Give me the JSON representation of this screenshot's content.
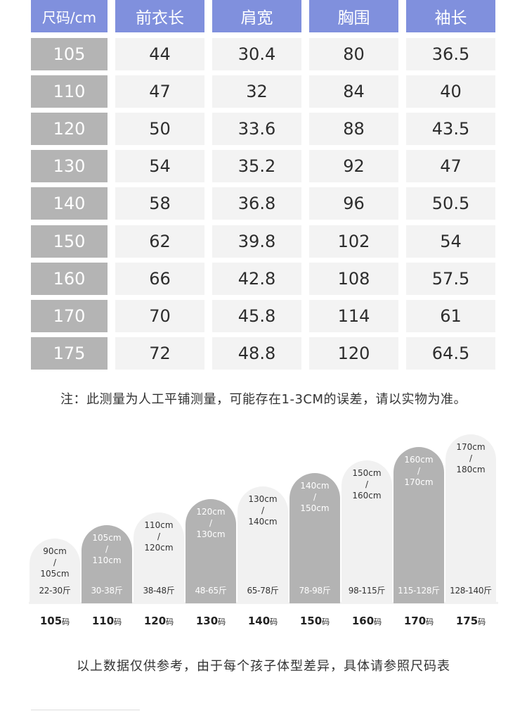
{
  "colors": {
    "header_bg": "#8090dd",
    "size_col_bg": "#b4b4b4",
    "cell_bg": "#f3f3f3",
    "bar_light": "#f1f1f1",
    "bar_dark": "#b3b3b3"
  },
  "size_table": {
    "headers": [
      "尺码/cm",
      "前衣长",
      "肩宽",
      "胸围",
      "袖长"
    ],
    "rows": [
      [
        "105",
        "44",
        "30.4",
        "80",
        "36.5"
      ],
      [
        "110",
        "47",
        "32",
        "84",
        "40"
      ],
      [
        "120",
        "50",
        "33.6",
        "88",
        "43.5"
      ],
      [
        "130",
        "54",
        "35.2",
        "92",
        "47"
      ],
      [
        "140",
        "58",
        "36.8",
        "96",
        "50.5"
      ],
      [
        "150",
        "62",
        "39.8",
        "102",
        "54"
      ],
      [
        "160",
        "66",
        "42.8",
        "108",
        "57.5"
      ],
      [
        "170",
        "70",
        "45.8",
        "114",
        "61"
      ],
      [
        "175",
        "72",
        "48.8",
        "120",
        "64.5"
      ]
    ]
  },
  "measure_note": "注：此测量为人工平铺测量，可能存在1-3CM的误差，请以实物为准。",
  "chart_data": {
    "type": "bar",
    "categories": [
      "105码",
      "110码",
      "120码",
      "130码",
      "140码",
      "150码",
      "160码",
      "170码",
      "175码"
    ],
    "bars": [
      {
        "size": "105",
        "unit": "码",
        "height_from": "90cm",
        "slash": "/",
        "height_to": "105cm",
        "weight": "22-30斤",
        "shade": "light"
      },
      {
        "size": "110",
        "unit": "码",
        "height_from": "105cm",
        "slash": "/",
        "height_to": "110cm",
        "weight": "30-38斤",
        "shade": "dark"
      },
      {
        "size": "120",
        "unit": "码",
        "height_from": "110cm",
        "slash": "/",
        "height_to": "120cm",
        "weight": "38-48斤",
        "shade": "light"
      },
      {
        "size": "130",
        "unit": "码",
        "height_from": "120cm",
        "slash": "/",
        "height_to": "130cm",
        "weight": "48-65斤",
        "shade": "dark"
      },
      {
        "size": "140",
        "unit": "码",
        "height_from": "130cm",
        "slash": "/",
        "height_to": "140cm",
        "weight": "65-78斤",
        "shade": "light"
      },
      {
        "size": "150",
        "unit": "码",
        "height_from": "140cm",
        "slash": "/",
        "height_to": "150cm",
        "weight": "78-98斤",
        "shade": "dark"
      },
      {
        "size": "160",
        "unit": "码",
        "height_from": "150cm",
        "slash": "/",
        "height_to": "160cm",
        "weight": "98-115斤",
        "shade": "light"
      },
      {
        "size": "170",
        "unit": "码",
        "height_from": "160cm",
        "slash": "/",
        "height_to": "170cm",
        "weight": "115-128斤",
        "shade": "dark"
      },
      {
        "size": "175",
        "unit": "码",
        "height_from": "170cm",
        "slash": "/",
        "height_to": "180cm",
        "weight": "128-140斤",
        "shade": "light"
      }
    ]
  },
  "reference_note": "以上数据仅供参考，由于每个孩子体型差异，具体请参照尺码表"
}
